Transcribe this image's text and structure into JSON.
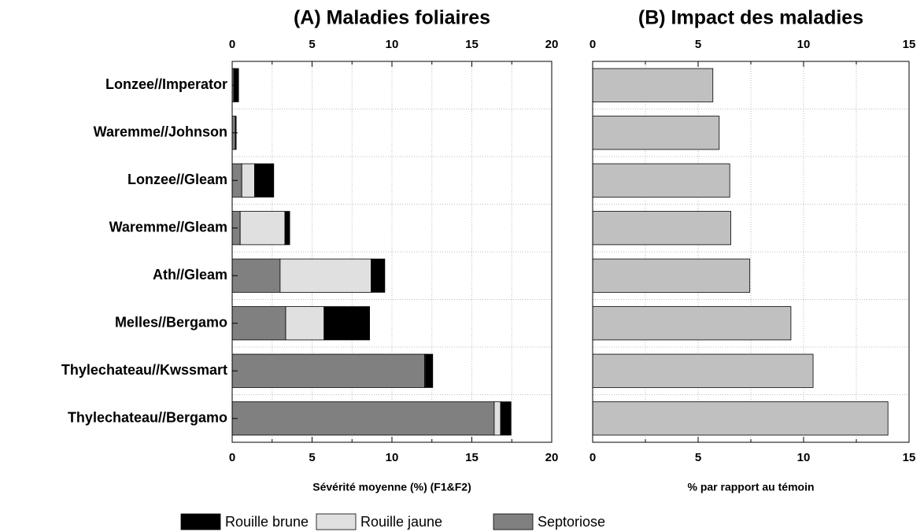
{
  "chart_data": [
    {
      "type": "stacked_barh",
      "title": "(A) Maladies foliaires",
      "xlabel": "Sévérité moyenne (%) (F1&F2)",
      "categories": [
        "Lonzee//Imperator",
        "Waremme//Johnson",
        "Lonzee//Gleam",
        "Waremme//Gleam",
        "Ath//Gleam",
        "Melles//Bergamo",
        "Thylechateau//Kwssmart",
        "Thylechateau//Bergamo"
      ],
      "series": [
        {
          "name": "Rouille brune",
          "color": "#000000",
          "values": [
            0.3,
            0.05,
            1.2,
            0.3,
            0.85,
            2.85,
            0.45,
            0.65
          ]
        },
        {
          "name": "Rouille jaune",
          "color": "#e0e0e0",
          "values": [
            0,
            0,
            0.8,
            2.8,
            5.7,
            2.4,
            0.05,
            0.4
          ]
        },
        {
          "name": "Septoriose",
          "color": "#808080",
          "values": [
            0.1,
            0.2,
            0.6,
            0.5,
            3.0,
            3.35,
            12.05,
            16.4
          ]
        }
      ],
      "xlim": [
        0,
        20
      ],
      "xticks": [
        0,
        5,
        10,
        15,
        20
      ],
      "minor_xticks": [
        2.5,
        7.5,
        12.5,
        17.5
      ],
      "grid": true,
      "legend": "bottom"
    },
    {
      "type": "barh",
      "title": "(B) Impact des maladies",
      "xlabel": "% par rapport au témoin",
      "color": "#c0c0c0",
      "values": [
        5.7,
        6.0,
        6.5,
        6.55,
        7.45,
        9.4,
        10.45,
        14.0
      ],
      "xlim": [
        0,
        15
      ],
      "xticks": [
        0,
        5,
        10,
        15
      ],
      "minor_xticks": [
        2.5,
        7.5,
        12.5
      ],
      "grid": true
    }
  ]
}
